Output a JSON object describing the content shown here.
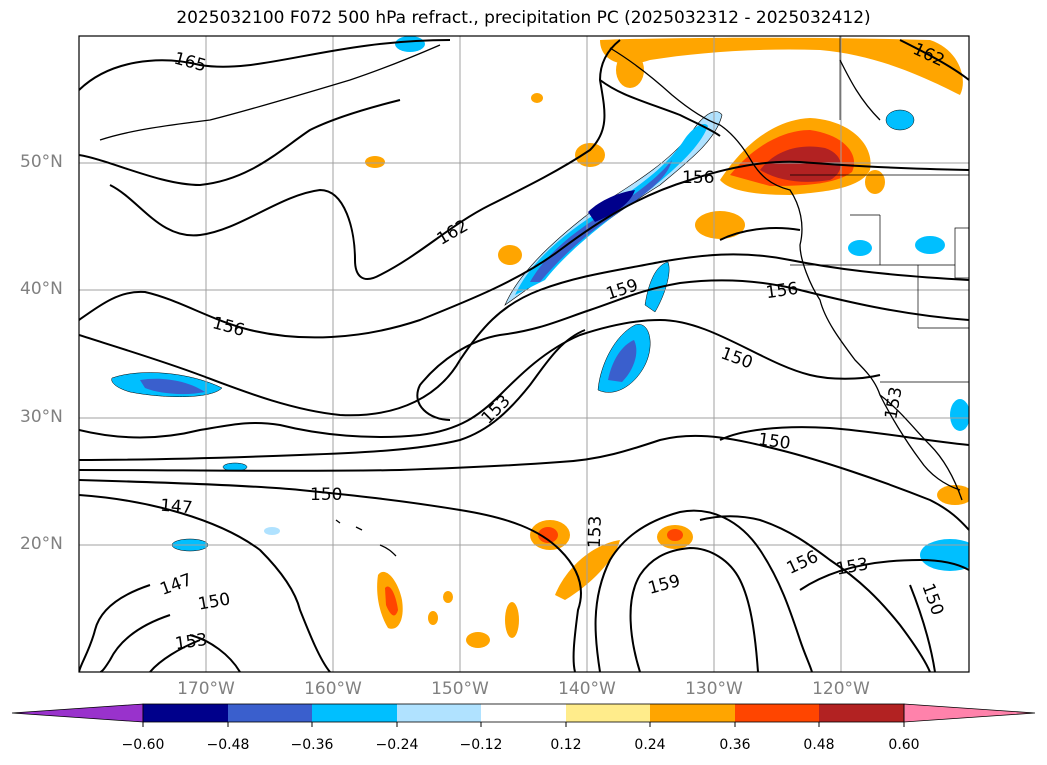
{
  "title": "2025032100 F072 500 hPa refract., precipitation PC (2025032312 - 2025032412)",
  "lat_labels": [
    "50°N",
    "40°N",
    "30°N",
    "20°N"
  ],
  "lon_labels": [
    "170°W",
    "160°W",
    "150°W",
    "140°W",
    "130°W",
    "120°W"
  ],
  "colorbar": {
    "ticks": [
      "−0.60",
      "−0.48",
      "−0.36",
      "−0.24",
      "−0.12",
      "0.12",
      "0.24",
      "0.36",
      "0.48",
      "0.60"
    ],
    "colors": [
      "#9932CC",
      "#00008B",
      "#3A5FCD",
      "#00BFFF",
      "#B0E2FF",
      "#FFFFFF",
      "#FFEC8B",
      "#FFA500",
      "#FF4500",
      "#B22222",
      "#FF82AB"
    ]
  },
  "contour_labels": [
    "165",
    "162",
    "162",
    "156",
    "159",
    "156",
    "156",
    "150",
    "153",
    "153",
    "150",
    "150",
    "147",
    "147",
    "150",
    "153",
    "153",
    "159",
    "156",
    "153",
    "150"
  ],
  "map_extent": {
    "lon": [
      -180,
      -110
    ],
    "lat": [
      10,
      60
    ]
  }
}
